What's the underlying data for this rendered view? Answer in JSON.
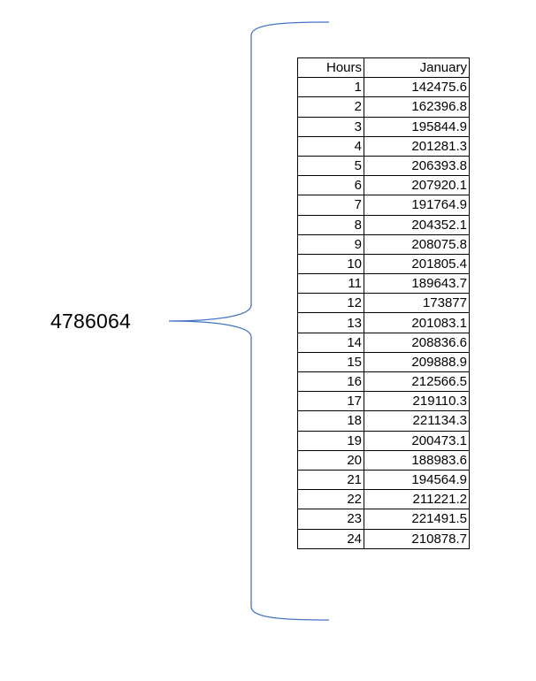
{
  "total": "4786064",
  "table": {
    "headers": [
      "Hours",
      "January"
    ],
    "rows": [
      [
        "1",
        "142475.6"
      ],
      [
        "2",
        "162396.8"
      ],
      [
        "3",
        "195844.9"
      ],
      [
        "4",
        "201281.3"
      ],
      [
        "5",
        "206393.8"
      ],
      [
        "6",
        "207920.1"
      ],
      [
        "7",
        "191764.9"
      ],
      [
        "8",
        "204352.1"
      ],
      [
        "9",
        "208075.8"
      ],
      [
        "10",
        "201805.4"
      ],
      [
        "11",
        "189643.7"
      ],
      [
        "12",
        "173877"
      ],
      [
        "13",
        "201083.1"
      ],
      [
        "14",
        "208836.6"
      ],
      [
        "15",
        "209888.9"
      ],
      [
        "16",
        "212566.5"
      ],
      [
        "17",
        "219110.3"
      ],
      [
        "18",
        "221134.3"
      ],
      [
        "19",
        "200473.1"
      ],
      [
        "20",
        "188983.6"
      ],
      [
        "21",
        "194564.9"
      ],
      [
        "22",
        "211221.2"
      ],
      [
        "23",
        "221491.5"
      ],
      [
        "24",
        "210878.7"
      ]
    ]
  },
  "colors": {
    "brace": "#4472c4",
    "grid": "#000000",
    "text": "#000000"
  }
}
